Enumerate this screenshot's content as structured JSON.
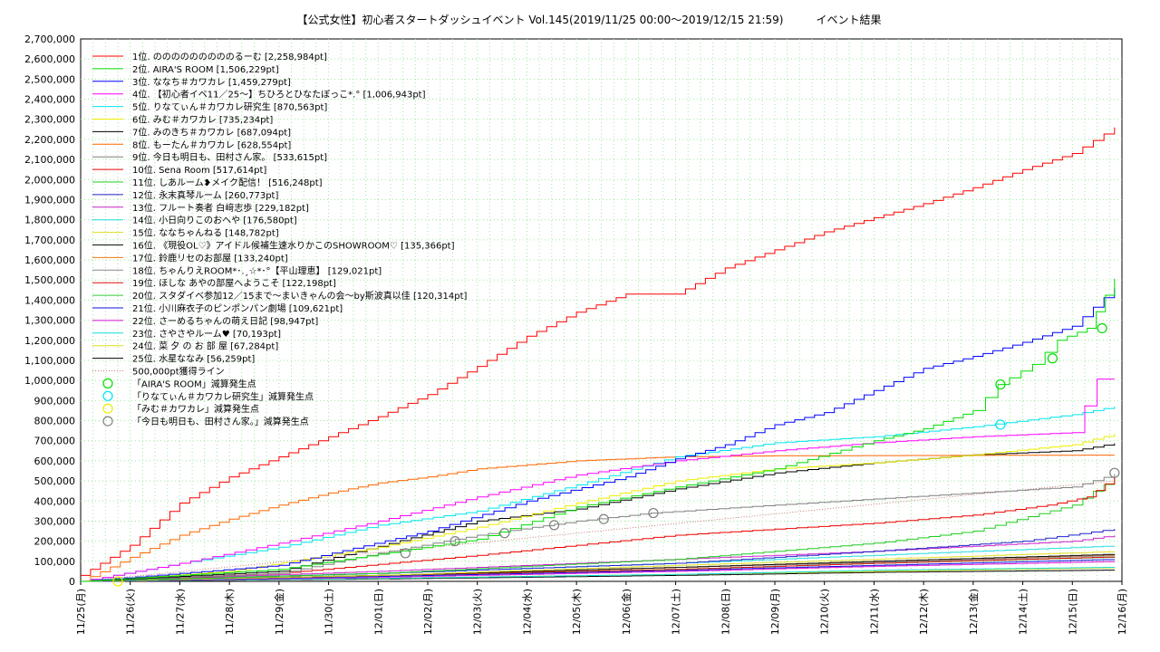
{
  "chart_data": {
    "type": "line",
    "title": "【公式女性】初心者スタートダッシュイベント Vol.145(2019/11/25 00:00〜2019/12/15 21:59)　　　イベント結果",
    "xlabel": "",
    "ylabel": "",
    "ylim": [
      0,
      2700000
    ],
    "xlim": [
      "2019-11-25",
      "2019-12-16"
    ],
    "grid": true,
    "legend_position": "top-left",
    "y_ticks": [
      "0",
      "100,000",
      "200,000",
      "300,000",
      "400,000",
      "500,000",
      "600,000",
      "700,000",
      "800,000",
      "900,000",
      "1,000,000",
      "1,100,000",
      "1,200,000",
      "1,300,000",
      "1,400,000",
      "1,500,000",
      "1,600,000",
      "1,700,000",
      "1,800,000",
      "1,900,000",
      "2,000,000",
      "2,100,000",
      "2,200,000",
      "2,300,000",
      "2,400,000",
      "2,500,000",
      "2,600,000",
      "2,700,000"
    ],
    "x_ticks": [
      "11/25(月)",
      "11/26(火)",
      "11/27(水)",
      "11/28(木)",
      "11/29(金)",
      "11/30(土)",
      "12/01(日)",
      "12/02(月)",
      "12/03(火)",
      "12/04(水)",
      "12/05(木)",
      "12/06(金)",
      "12/07(土)",
      "12/08(日)",
      "12/09(月)",
      "12/10(火)",
      "12/11(水)",
      "12/12(木)",
      "12/13(金)",
      "12/14(土)",
      "12/15(日)",
      "12/16(月)"
    ],
    "series": [
      {
        "name": "1位. のののののののののるーむ [2,258,984pt]",
        "color": "#ff0000",
        "final": 2258984,
        "points": [
          [
            0,
            30000
          ],
          [
            1,
            180000
          ],
          [
            2,
            390000
          ],
          [
            3,
            520000
          ],
          [
            4,
            620000
          ],
          [
            5,
            720000
          ],
          [
            6,
            820000
          ],
          [
            7,
            930000
          ],
          [
            8,
            1070000
          ],
          [
            9,
            1220000
          ],
          [
            10,
            1340000
          ],
          [
            11,
            1430000
          ],
          [
            12,
            1430000
          ],
          [
            13,
            1560000
          ],
          [
            14,
            1650000
          ],
          [
            15,
            1740000
          ],
          [
            16,
            1810000
          ],
          [
            17,
            1880000
          ],
          [
            18,
            1960000
          ],
          [
            19,
            2050000
          ],
          [
            20,
            2130000
          ],
          [
            20.85,
            2258984
          ]
        ]
      },
      {
        "name": "2位. AIRA'S ROOM [1,506,229pt]",
        "color": "#00dd00",
        "final": 1506229,
        "points": [
          [
            0,
            0
          ],
          [
            4,
            60000
          ],
          [
            8,
            210000
          ],
          [
            10,
            370000
          ],
          [
            12,
            470000
          ],
          [
            14,
            560000
          ],
          [
            16,
            700000
          ],
          [
            17,
            760000
          ],
          [
            18,
            850000
          ],
          [
            18.5,
            980000
          ],
          [
            19.2,
            1080000
          ],
          [
            19.7,
            1200000
          ],
          [
            20.3,
            1260000
          ],
          [
            20.85,
            1506229
          ]
        ]
      },
      {
        "name": "3位. ななち＃カワカレ [1,459,279pt]",
        "color": "#0000ff",
        "final": 1459279,
        "points": [
          [
            0,
            0
          ],
          [
            4,
            80000
          ],
          [
            7,
            250000
          ],
          [
            9,
            400000
          ],
          [
            11,
            520000
          ],
          [
            12,
            610000
          ],
          [
            13,
            680000
          ],
          [
            14,
            780000
          ],
          [
            15,
            840000
          ],
          [
            16,
            950000
          ],
          [
            17,
            1060000
          ],
          [
            18,
            1120000
          ],
          [
            19,
            1190000
          ],
          [
            20,
            1270000
          ],
          [
            20.85,
            1459279
          ]
        ]
      },
      {
        "name": "4位. 【初心者イベ11／25〜】ちひろとひなたぼっこ*.° [1,006,943pt]",
        "color": "#ff00ff",
        "final": 1006943,
        "points": [
          [
            0,
            0
          ],
          [
            2,
            90000
          ],
          [
            4,
            190000
          ],
          [
            6,
            300000
          ],
          [
            8,
            420000
          ],
          [
            10,
            530000
          ],
          [
            12,
            600000
          ],
          [
            14,
            650000
          ],
          [
            16,
            690000
          ],
          [
            18,
            720000
          ],
          [
            20,
            740000
          ],
          [
            20.5,
            1006943
          ],
          [
            20.85,
            1006943
          ]
        ]
      },
      {
        "name": "5位. りなてぃん＃カワカレ研究生 [870,563pt]",
        "color": "#00e5ee",
        "final": 870563,
        "points": [
          [
            0,
            0
          ],
          [
            2,
            90000
          ],
          [
            4,
            170000
          ],
          [
            6,
            280000
          ],
          [
            8,
            350000
          ],
          [
            10,
            480000
          ],
          [
            12,
            620000
          ],
          [
            14,
            690000
          ],
          [
            16,
            720000
          ],
          [
            18,
            770000
          ],
          [
            20,
            830000
          ],
          [
            20.85,
            870563
          ]
        ]
      },
      {
        "name": "6位. みむ＃カワカレ [735,234pt]",
        "color": "#eeee00",
        "final": 735234,
        "points": [
          [
            0,
            0
          ],
          [
            3,
            50000
          ],
          [
            6,
            170000
          ],
          [
            8,
            270000
          ],
          [
            10,
            390000
          ],
          [
            12,
            500000
          ],
          [
            14,
            560000
          ],
          [
            16,
            590000
          ],
          [
            18,
            630000
          ],
          [
            20,
            680000
          ],
          [
            20.85,
            735234
          ]
        ]
      },
      {
        "name": "7位. みのきち＃カワカレ [687,094pt]",
        "color": "#000000",
        "final": 687094,
        "points": [
          [
            0,
            0
          ],
          [
            4,
            50000
          ],
          [
            8,
            300000
          ],
          [
            10,
            360000
          ],
          [
            12,
            460000
          ],
          [
            14,
            540000
          ],
          [
            16,
            590000
          ],
          [
            18,
            630000
          ],
          [
            20,
            650000
          ],
          [
            20.85,
            687094
          ]
        ]
      },
      {
        "name": "8位. もーたん＃カワカレ [628,554pt]",
        "color": "#ff6600",
        "final": 628554,
        "points": [
          [
            0,
            0
          ],
          [
            1,
            120000
          ],
          [
            2,
            230000
          ],
          [
            3,
            310000
          ],
          [
            4,
            380000
          ],
          [
            5,
            440000
          ],
          [
            6,
            490000
          ],
          [
            7,
            520000
          ],
          [
            8,
            560000
          ],
          [
            9,
            580000
          ],
          [
            10,
            600000
          ],
          [
            11,
            610000
          ],
          [
            12,
            620000
          ],
          [
            14,
            625000
          ],
          [
            20.85,
            628554
          ]
        ]
      },
      {
        "name": "9位. 今日も明日も、田村さん家。 [533,615pt]",
        "color": "#808080",
        "final": 533615,
        "points": [
          [
            0,
            0
          ],
          [
            4,
            40000
          ],
          [
            6,
            140000
          ],
          [
            8,
            230000
          ],
          [
            10,
            300000
          ],
          [
            11.5,
            340000
          ],
          [
            14,
            380000
          ],
          [
            16,
            410000
          ],
          [
            18,
            440000
          ],
          [
            20,
            470000
          ],
          [
            20.85,
            533615
          ]
        ]
      },
      {
        "name": "10位. Sena Room [517,614pt]",
        "color": "#ee0000",
        "final": 517614,
        "points": [
          [
            0,
            0
          ],
          [
            4,
            40000
          ],
          [
            8,
            130000
          ],
          [
            12,
            230000
          ],
          [
            14,
            260000
          ],
          [
            16,
            290000
          ],
          [
            18,
            330000
          ],
          [
            19.5,
            380000
          ],
          [
            20.3,
            420000
          ],
          [
            20.85,
            517614
          ]
        ]
      },
      {
        "name": "11位. しあルーム❥メイク配信！ [516,248pt]",
        "color": "#22cc22",
        "final": 516248,
        "points": [
          [
            0,
            0
          ],
          [
            6,
            40000
          ],
          [
            12,
            110000
          ],
          [
            16,
            190000
          ],
          [
            18,
            250000
          ],
          [
            20,
            380000
          ],
          [
            20.85,
            516248
          ]
        ]
      },
      {
        "name": "12位. 永末真琴ルーム [260,773pt]",
        "color": "#2222cc",
        "final": 260773,
        "points": [
          [
            0,
            0
          ],
          [
            6,
            40000
          ],
          [
            12,
            90000
          ],
          [
            16,
            150000
          ],
          [
            19,
            200000
          ],
          [
            20.85,
            260773
          ]
        ]
      },
      {
        "name": "13位. フルート奏者 白﨑志歩 [229,182pt]",
        "color": "#cc22cc",
        "final": 229182,
        "points": [
          [
            0,
            0
          ],
          [
            6,
            50000
          ],
          [
            12,
            110000
          ],
          [
            16,
            150000
          ],
          [
            20,
            200000
          ],
          [
            20.85,
            229182
          ]
        ]
      },
      {
        "name": "14位. 小日向りこのおへや [176,580pt]",
        "color": "#22dddd",
        "final": 176580,
        "points": [
          [
            0,
            0
          ],
          [
            6,
            40000
          ],
          [
            12,
            90000
          ],
          [
            16,
            130000
          ],
          [
            20.85,
            176580
          ]
        ]
      },
      {
        "name": "15位. ななちゃんねる [148,782pt]",
        "color": "#dddd22",
        "final": 148782,
        "points": [
          [
            0,
            0
          ],
          [
            6,
            30000
          ],
          [
            12,
            80000
          ],
          [
            16,
            110000
          ],
          [
            20.85,
            148782
          ]
        ]
      },
      {
        "name": "16位. 《現役OL♡》アイドル候補生速水りかこのSHOWROOM♡ [135,366pt]",
        "color": "#111111",
        "final": 135366,
        "points": [
          [
            0,
            0
          ],
          [
            6,
            30000
          ],
          [
            12,
            70000
          ],
          [
            16,
            100000
          ],
          [
            20.85,
            135366
          ]
        ]
      },
      {
        "name": "17位. 鈴鹿リセのお部屋 [133,240pt]",
        "color": "#ee7711",
        "final": 133240,
        "points": [
          [
            0,
            0
          ],
          [
            6,
            30000
          ],
          [
            12,
            70000
          ],
          [
            16,
            100000
          ],
          [
            20.85,
            133240
          ]
        ]
      },
      {
        "name": "18位. ちゃんりえROOM*･.¸☆*･°【平山理恵】 [129,021pt]",
        "color": "#888888",
        "final": 129021,
        "points": [
          [
            0,
            0
          ],
          [
            6,
            30000
          ],
          [
            12,
            70000
          ],
          [
            16,
            95000
          ],
          [
            20.85,
            129021
          ]
        ]
      },
      {
        "name": "19位. ほしな あやの部屋へようこそ [122,198pt]",
        "color": "#dd1111",
        "final": 122198,
        "points": [
          [
            0,
            0
          ],
          [
            6,
            30000
          ],
          [
            12,
            60000
          ],
          [
            16,
            90000
          ],
          [
            20.85,
            122198
          ]
        ]
      },
      {
        "name": "20位. スタダイベ参加12／15まで〜まいきゃんの会〜by斯波真以佳 [120,314pt]",
        "color": "#33cc33",
        "final": 120314,
        "points": [
          [
            0,
            0
          ],
          [
            6,
            30000
          ],
          [
            12,
            60000
          ],
          [
            16,
            90000
          ],
          [
            20.85,
            120314
          ]
        ]
      },
      {
        "name": "21位. 小川麻衣子のピンポンパン劇場 [109,621pt]",
        "color": "#1111dd",
        "final": 109621,
        "points": [
          [
            0,
            0
          ],
          [
            6,
            25000
          ],
          [
            12,
            55000
          ],
          [
            16,
            80000
          ],
          [
            20.85,
            109621
          ]
        ]
      },
      {
        "name": "22位. さーめるちゃんの萌え日記 [98,947pt]",
        "color": "#dd11dd",
        "final": 98947,
        "points": [
          [
            0,
            0
          ],
          [
            6,
            20000
          ],
          [
            12,
            50000
          ],
          [
            16,
            75000
          ],
          [
            20.85,
            98947
          ]
        ]
      },
      {
        "name": "23位. さやさやルーム♥ [70,193pt]",
        "color": "#11dddd",
        "final": 70193,
        "points": [
          [
            0,
            0
          ],
          [
            6,
            15000
          ],
          [
            12,
            35000
          ],
          [
            16,
            55000
          ],
          [
            20.85,
            70193
          ]
        ]
      },
      {
        "name": "24位. 菜 夕 の お 部 屋 [67,284pt]",
        "color": "#dddd11",
        "final": 67284,
        "points": [
          [
            0,
            0
          ],
          [
            6,
            15000
          ],
          [
            12,
            35000
          ],
          [
            16,
            50000
          ],
          [
            20.85,
            67284
          ]
        ]
      },
      {
        "name": "25位. 水星ななみ [56,259pt]",
        "color": "#000000",
        "final": 56259,
        "points": [
          [
            0,
            0
          ],
          [
            6,
            12000
          ],
          [
            12,
            30000
          ],
          [
            16,
            45000
          ],
          [
            20.85,
            56259
          ]
        ]
      }
    ],
    "reference_line": {
      "name": "500,000pt獲得ライン",
      "color": "#cc7777",
      "points": [
        [
          0,
          0
        ],
        [
          20.85,
          500000
        ]
      ]
    },
    "markers": [
      {
        "name": "「AIRA'S ROOM」減算発生点",
        "color": "#00dd00",
        "points": [
          [
            18.55,
            980000
          ],
          [
            19.6,
            1110000
          ],
          [
            20.6,
            1260000
          ]
        ]
      },
      {
        "name": "「りなてぃん＃カワカレ研究生」減算発生点",
        "color": "#00e5ee",
        "points": [
          [
            18.55,
            780000
          ]
        ]
      },
      {
        "name": "「みむ＃カワカレ」減算発生点",
        "color": "#eeee00",
        "points": [
          [
            0.75,
            0
          ]
        ]
      },
      {
        "name": "「今日も明日も、田村さん家。」減算発生点",
        "color": "#808080",
        "points": [
          [
            6.55,
            140000
          ],
          [
            7.55,
            200000
          ],
          [
            8.55,
            240000
          ],
          [
            9.55,
            280000
          ],
          [
            10.55,
            310000
          ],
          [
            11.55,
            340000
          ],
          [
            20.85,
            540000
          ]
        ]
      }
    ]
  }
}
